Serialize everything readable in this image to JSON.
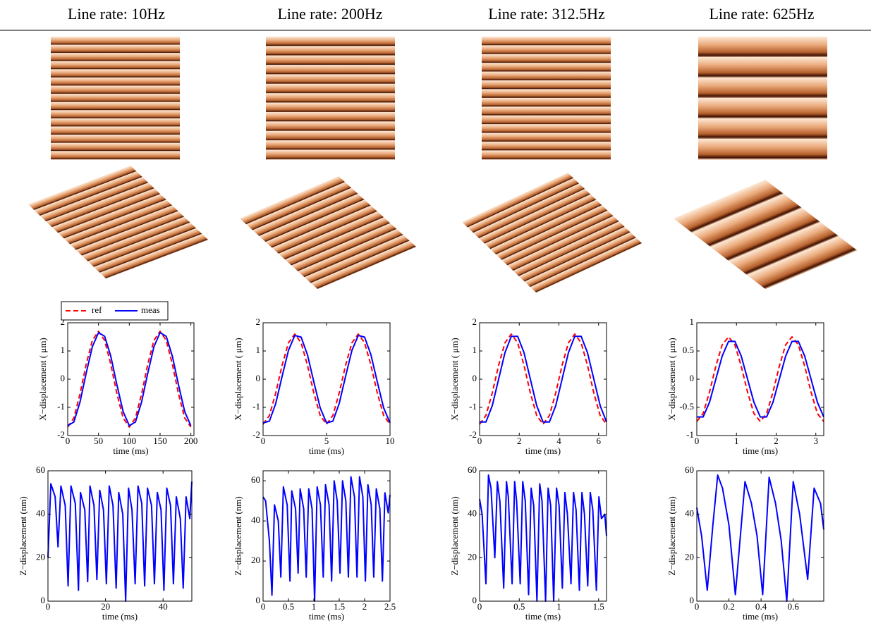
{
  "header": {
    "columns": [
      "Line rate: 10Hz",
      "Line rate: 200Hz",
      "Line rate: 312.5Hz",
      "Line rate: 625Hz"
    ]
  },
  "chart_data": [
    {
      "type": "line",
      "x_label": "time (ms)",
      "y_label": "X−displacement ( μm)",
      "legend": "above",
      "x": [
        0,
        10,
        20,
        30,
        40,
        50,
        60,
        70,
        80,
        90,
        100,
        110,
        120,
        130,
        140,
        150,
        160,
        170,
        180,
        190,
        200
      ],
      "series": [
        {
          "name": "ref",
          "color": "#ff0000",
          "line_style": "dashed",
          "values": [
            -1.7,
            -1.375,
            -0.525,
            0.525,
            1.375,
            1.7,
            1.375,
            0.525,
            -0.525,
            -1.375,
            -1.7,
            -1.375,
            -0.525,
            0.525,
            1.375,
            1.7,
            1.375,
            0.525,
            -0.525,
            -1.375,
            -1.7
          ]
        },
        {
          "name": "meas",
          "color": "#0000ff",
          "line_style": "solid",
          "values": [
            -1.65,
            -1.52,
            -0.81,
            0.21,
            1.15,
            1.65,
            1.52,
            0.81,
            -0.21,
            -1.15,
            -1.65,
            -1.52,
            -0.81,
            0.21,
            1.15,
            1.65,
            1.52,
            0.81,
            -0.21,
            -1.15,
            -1.65
          ]
        }
      ],
      "xlim": [
        0,
        205
      ],
      "ylim": [
        -2,
        2
      ],
      "xticks": [
        0,
        50,
        100,
        150,
        200
      ],
      "yticks": [
        -2,
        -1,
        0,
        1,
        2
      ]
    },
    {
      "type": "line",
      "x_label": "time (ms)",
      "y_label": "X−displacement ( μm)",
      "x": [
        0,
        0.5,
        1,
        1.5,
        2,
        2.5,
        3,
        3.5,
        4,
        4.5,
        5,
        5.5,
        6,
        6.5,
        7,
        7.5,
        8,
        8.5,
        9,
        9.5,
        10
      ],
      "series": [
        {
          "color": "#ff0000",
          "line_style": "dashed",
          "values": [
            -1.6,
            -1.29,
            -0.49,
            0.49,
            1.29,
            1.6,
            1.29,
            0.49,
            -0.49,
            -1.29,
            -1.6,
            -1.29,
            -0.49,
            0.49,
            1.29,
            1.6,
            1.29,
            0.49,
            -0.49,
            -1.29,
            -1.6
          ]
        },
        {
          "color": "#0000ff",
          "line_style": "solid",
          "values": [
            -1.55,
            -1.49,
            -0.86,
            0.1,
            1.02,
            1.55,
            1.49,
            0.86,
            -0.1,
            -1.02,
            -1.55,
            -1.49,
            -0.86,
            0.1,
            1.02,
            1.55,
            1.49,
            0.86,
            -0.1,
            -1.02,
            -1.55
          ]
        }
      ],
      "xlim": [
        0,
        10
      ],
      "ylim": [
        -2,
        2
      ],
      "xticks": [
        0,
        5,
        10
      ],
      "yticks": [
        -2,
        -1,
        0,
        1,
        2
      ]
    },
    {
      "type": "line",
      "x_label": "time (ms)",
      "y_label": "X−displacement ( μm)",
      "x": [
        0,
        0.32,
        0.64,
        0.96,
        1.28,
        1.6,
        1.92,
        2.24,
        2.56,
        2.88,
        3.2,
        3.52,
        3.84,
        4.16,
        4.48,
        4.8,
        5.12,
        5.44,
        5.76,
        6.08,
        6.4
      ],
      "series": [
        {
          "color": "#ff0000",
          "line_style": "dashed",
          "values": [
            -1.6,
            -1.29,
            -0.49,
            0.49,
            1.29,
            1.6,
            1.29,
            0.49,
            -0.49,
            -1.29,
            -1.6,
            -1.29,
            -0.49,
            0.49,
            1.29,
            1.6,
            1.29,
            0.49,
            -0.49,
            -1.29,
            -1.6
          ]
        },
        {
          "color": "#0000ff",
          "line_style": "solid",
          "values": [
            -1.52,
            -1.52,
            -0.94,
            0,
            0.94,
            1.52,
            1.52,
            0.94,
            0,
            -0.94,
            -1.52,
            -1.52,
            -0.94,
            0,
            0.94,
            1.52,
            1.52,
            0.94,
            0,
            -0.94,
            -1.52
          ]
        }
      ],
      "xlim": [
        0,
        6.4
      ],
      "ylim": [
        -2,
        2
      ],
      "xticks": [
        0,
        2,
        4,
        6
      ],
      "yticks": [
        -2,
        -1,
        0,
        1,
        2
      ]
    },
    {
      "type": "line",
      "x_label": "time (ms)",
      "y_label": "X−displacement ( μm)",
      "x": [
        0,
        0.16,
        0.32,
        0.48,
        0.64,
        0.8,
        0.96,
        1.12,
        1.28,
        1.44,
        1.6,
        1.76,
        1.92,
        2.08,
        2.24,
        2.4,
        2.56,
        2.72,
        2.88,
        3.04,
        3.2
      ],
      "series": [
        {
          "color": "#ff0000",
          "line_style": "dashed",
          "values": [
            -0.75,
            -0.61,
            -0.23,
            0.23,
            0.61,
            0.75,
            0.61,
            0.23,
            -0.23,
            -0.61,
            -0.75,
            -0.61,
            -0.23,
            0.23,
            0.61,
            0.75,
            0.61,
            0.23,
            -0.23,
            -0.61,
            -0.75
          ]
        },
        {
          "color": "#0000ff",
          "line_style": "solid",
          "values": [
            -0.67,
            -0.67,
            -0.41,
            0,
            0.41,
            0.67,
            0.67,
            0.41,
            0,
            -0.41,
            -0.67,
            -0.67,
            -0.41,
            0,
            0.41,
            0.67,
            0.67,
            0.41,
            0,
            -0.41,
            -0.67
          ]
        }
      ],
      "xlim": [
        0,
        3.2
      ],
      "ylim": [
        -1,
        1
      ],
      "xticks": [
        0,
        1,
        2,
        3
      ],
      "yticks": [
        -1,
        -0.5,
        0,
        0.5,
        1
      ]
    },
    {
      "type": "line",
      "x_label": "time (ms)",
      "y_label": "Z−displacement (nm)",
      "x": [
        0,
        1,
        2.5,
        3.5,
        4.5,
        6,
        7,
        8,
        9.5,
        10.6,
        11.3,
        12.8,
        13.8,
        14.6,
        16,
        17,
        18,
        19.3,
        20.3,
        21.3,
        22.6,
        23.7,
        24.6,
        26,
        27,
        28,
        29.2,
        30.3,
        31.3,
        32.6,
        33.6,
        34.6,
        36,
        37,
        38,
        39.3,
        40.3,
        41.3,
        42.6,
        43.6,
        44.6,
        46,
        47,
        48,
        49.3,
        50
      ],
      "series": [
        {
          "color": "#0000ff",
          "line_style": "solid",
          "values": [
            20,
            54,
            48,
            25,
            53,
            44,
            7,
            53,
            45,
            5,
            50,
            42,
            9,
            53,
            44,
            10,
            51,
            42,
            8,
            53,
            44,
            6,
            50,
            40,
            0,
            52,
            42,
            8,
            53,
            45,
            7,
            52,
            44,
            8,
            50,
            42,
            5,
            52,
            44,
            8,
            48,
            38,
            6,
            48,
            38,
            55
          ]
        }
      ],
      "xlim": [
        0,
        50
      ],
      "ylim": [
        0,
        60
      ],
      "xticks": [
        0,
        20,
        40
      ],
      "yticks": [
        0,
        20,
        40,
        60
      ]
    },
    {
      "type": "line",
      "x_label": "time (ms)",
      "y_label": "Z−displacement (nm)",
      "x": [
        0,
        0.05,
        0.125,
        0.175,
        0.225,
        0.3,
        0.35,
        0.4,
        0.475,
        0.53,
        0.565,
        0.64,
        0.69,
        0.73,
        0.8,
        0.85,
        0.9,
        0.965,
        1.015,
        1.065,
        1.13,
        1.185,
        1.23,
        1.3,
        1.35,
        1.4,
        1.46,
        1.515,
        1.565,
        1.63,
        1.68,
        1.73,
        1.8,
        1.85,
        1.9,
        1.965,
        2.015,
        2.065,
        2.13,
        2.18,
        2.23,
        2.3,
        2.35,
        2.4,
        2.465,
        2.5
      ],
      "series": [
        {
          "color": "#0000ff",
          "line_style": "solid",
          "values": [
            52,
            50,
            30,
            3,
            48,
            40,
            12,
            57,
            48,
            10,
            55,
            46,
            14,
            56,
            46,
            12,
            56,
            46,
            0,
            57,
            48,
            12,
            58,
            48,
            10,
            60,
            50,
            14,
            60,
            50,
            12,
            62,
            52,
            12,
            62,
            52,
            10,
            58,
            48,
            12,
            56,
            46,
            10,
            54,
            44,
            53
          ]
        }
      ],
      "xlim": [
        0,
        2.5
      ],
      "ylim": [
        0,
        65
      ],
      "xticks": [
        0,
        0.5,
        1,
        1.5,
        2,
        2.5
      ],
      "yticks": [
        0,
        20,
        40,
        60
      ]
    },
    {
      "type": "line",
      "x_label": "time (ms)",
      "y_label": "Z−displacement (nm)",
      "x": [
        0,
        0.032,
        0.08,
        0.112,
        0.144,
        0.192,
        0.224,
        0.256,
        0.304,
        0.339,
        0.362,
        0.41,
        0.442,
        0.467,
        0.512,
        0.544,
        0.576,
        0.618,
        0.65,
        0.682,
        0.723,
        0.758,
        0.787,
        0.832,
        0.864,
        0.896,
        0.934,
        0.97,
        1.002,
        1.043,
        1.075,
        1.107,
        1.152,
        1.184,
        1.216,
        1.258,
        1.29,
        1.322,
        1.363,
        1.395,
        1.427,
        1.472,
        1.504,
        1.536,
        1.578,
        1.6
      ],
      "series": [
        {
          "color": "#0000ff",
          "line_style": "solid",
          "values": [
            47,
            40,
            8,
            58,
            52,
            20,
            55,
            46,
            6,
            55,
            48,
            8,
            55,
            46,
            8,
            55,
            46,
            3,
            52,
            44,
            0,
            54,
            46,
            0,
            52,
            44,
            0,
            52,
            44,
            6,
            50,
            40,
            8,
            50,
            42,
            5,
            50,
            40,
            7,
            50,
            42,
            5,
            48,
            38,
            40,
            30
          ]
        }
      ],
      "xlim": [
        0,
        1.6
      ],
      "ylim": [
        0,
        60
      ],
      "xticks": [
        0,
        0.5,
        1,
        1.5
      ],
      "yticks": [
        0,
        20,
        40,
        60
      ]
    },
    {
      "type": "line",
      "x_label": "time (ms)",
      "y_label": "Z−displacement (nm)",
      "x": [
        0,
        0.03,
        0.065,
        0.1,
        0.13,
        0.16,
        0.2,
        0.24,
        0.3,
        0.34,
        0.375,
        0.41,
        0.45,
        0.49,
        0.525,
        0.56,
        0.6,
        0.64,
        0.69,
        0.73,
        0.77,
        0.79
      ],
      "series": [
        {
          "color": "#0000ff",
          "line_style": "solid",
          "values": [
            43,
            30,
            5,
            35,
            58,
            52,
            35,
            3,
            55,
            45,
            30,
            3,
            57,
            45,
            28,
            0,
            55,
            40,
            10,
            52,
            45,
            33
          ]
        }
      ],
      "xlim": [
        0,
        0.79
      ],
      "ylim": [
        0,
        60
      ],
      "xticks": [
        0,
        0.2,
        0.4,
        0.6
      ],
      "yticks": [
        0,
        20,
        40,
        60
      ]
    }
  ]
}
